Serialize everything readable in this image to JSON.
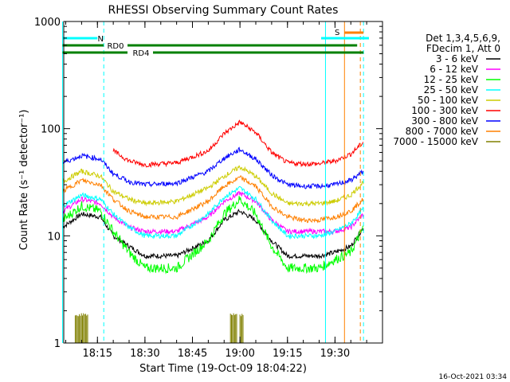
{
  "chart_data": {
    "type": "line",
    "title": "RHESSI Observing Summary Count Rates",
    "xlabel": "Start Time (19-Oct-09 18:04:22)",
    "ylabel": "Count Rate (s⁻¹ detector⁻¹)",
    "y_scale": "log",
    "ylim": [
      1,
      1000
    ],
    "xlim": [
      "18:04:22",
      "19:45:00"
    ],
    "x_ticks": [
      "18:15",
      "18:30",
      "18:45",
      "19:00",
      "19:15",
      "19:30"
    ],
    "y_ticks": [
      "1",
      "10",
      "100",
      "1000"
    ],
    "grid": false,
    "legend_placement": "right",
    "legend_header": [
      "Det 1,3,4,5,6,9,",
      "FDecim 1, Att 0"
    ],
    "series": [
      {
        "name": "3 - 6 keV",
        "color": "#000000",
        "t": [
          "18:04",
          "18:10",
          "18:16",
          "18:20",
          "18:25",
          "18:30",
          "18:40",
          "18:50",
          "18:55",
          "19:00",
          "19:05",
          "19:10",
          "19:15",
          "19:20",
          "19:25",
          "19:30",
          "19:35",
          "19:39"
        ],
        "values": [
          12,
          16,
          15,
          10,
          8,
          6.5,
          6.5,
          9,
          14,
          17,
          14,
          9,
          6.5,
          6.5,
          6.5,
          7,
          8,
          12
        ]
      },
      {
        "name": "6 - 12 keV",
        "color": "#ff00ff",
        "t": [
          "18:04",
          "18:10",
          "18:16",
          "18:20",
          "18:25",
          "18:30",
          "18:40",
          "18:50",
          "18:55",
          "19:00",
          "19:05",
          "19:10",
          "19:15",
          "19:20",
          "19:25",
          "19:30",
          "19:35",
          "19:39"
        ],
        "values": [
          17,
          22,
          20,
          15,
          12,
          11,
          11,
          15,
          21,
          25,
          21,
          14,
          11,
          11,
          11,
          11,
          12,
          16
        ]
      },
      {
        "name": "12 - 25 keV",
        "color": "#00ff00",
        "t": [
          "18:04",
          "18:10",
          "18:16",
          "18:20",
          "18:25",
          "18:30",
          "18:40",
          "18:50",
          "18:55",
          "19:00",
          "19:05",
          "19:10",
          "19:15",
          "19:20",
          "19:25",
          "19:30",
          "19:35",
          "19:39"
        ],
        "values": [
          14,
          19,
          17,
          11,
          7,
          5,
          5,
          9,
          16,
          22,
          16,
          8,
          5,
          5,
          5,
          6,
          7,
          12
        ]
      },
      {
        "name": "25 - 50 keV",
        "color": "#00ffff",
        "t": [
          "18:04",
          "18:10",
          "18:16",
          "18:20",
          "18:25",
          "18:30",
          "18:40",
          "18:50",
          "18:55",
          "19:00",
          "19:05",
          "19:10",
          "19:15",
          "19:20",
          "19:25",
          "19:30",
          "19:35",
          "19:39"
        ],
        "values": [
          19,
          24,
          22,
          16,
          12,
          10,
          10,
          16,
          23,
          28,
          22,
          14,
          10,
          10,
          10,
          11,
          13,
          18
        ]
      },
      {
        "name": "50 - 100 keV",
        "color": "#cccc00",
        "t": [
          "18:04",
          "18:10",
          "18:16",
          "18:20",
          "18:25",
          "18:30",
          "18:40",
          "18:50",
          "18:55",
          "19:00",
          "19:05",
          "19:10",
          "19:15",
          "19:20",
          "19:25",
          "19:30",
          "19:35",
          "19:39"
        ],
        "values": [
          32,
          40,
          36,
          26,
          22,
          20,
          21,
          28,
          36,
          44,
          36,
          25,
          20,
          20,
          20,
          21,
          24,
          32
        ]
      },
      {
        "name": "100 - 300 keV",
        "color": "#ff0000",
        "t": [
          "18:04",
          "18:10",
          "18:16",
          "18:19",
          "18:20",
          "18:25",
          "18:30",
          "18:40",
          "18:50",
          "18:55",
          "19:00",
          "19:05",
          "19:10",
          "19:15",
          "19:20",
          "19:25",
          "19:30",
          "19:35",
          "19:39"
        ],
        "values": [
          null,
          null,
          null,
          null,
          62,
          50,
          46,
          48,
          62,
          90,
          115,
          92,
          60,
          48,
          47,
          47,
          50,
          58,
          75
        ]
      },
      {
        "name": "300 - 800 keV",
        "color": "#0000ff",
        "t": [
          "18:04",
          "18:10",
          "18:16",
          "18:20",
          "18:25",
          "18:30",
          "18:40",
          "18:50",
          "18:55",
          "19:00",
          "19:05",
          "19:10",
          "19:15",
          "19:20",
          "19:25",
          "19:30",
          "19:35",
          "19:39"
        ],
        "values": [
          48,
          56,
          52,
          38,
          32,
          30,
          31,
          40,
          53,
          64,
          52,
          37,
          30,
          29,
          29,
          30,
          33,
          40
        ]
      },
      {
        "name": "800 - 7000 keV",
        "color": "#ff8000",
        "t": [
          "18:04",
          "18:10",
          "18:16",
          "18:20",
          "18:25",
          "18:30",
          "18:40",
          "18:50",
          "18:55",
          "19:00",
          "19:05",
          "19:10",
          "19:15",
          "19:20",
          "19:25",
          "19:30",
          "19:35",
          "19:39"
        ],
        "values": [
          26,
          33,
          30,
          22,
          17,
          15,
          15,
          21,
          29,
          35,
          29,
          19,
          15,
          14,
          14,
          15,
          17,
          22
        ]
      },
      {
        "name": "7000 - 15000 keV",
        "color": "#808000",
        "bursts": [
          [
            "18:08",
            "18:12"
          ],
          [
            "18:57",
            "18:59"
          ],
          [
            "19:00",
            "19:01"
          ]
        ],
        "values": [
          1.9,
          1.9,
          1.9
        ]
      }
    ],
    "annotations": [
      {
        "label": "N",
        "color": "#00ffff",
        "start": "18:04",
        "end": "18:17"
      },
      {
        "label": "RD0",
        "color": "#008000",
        "start": "18:04",
        "end": "19:37"
      },
      {
        "label": "RD4",
        "color": "#008000",
        "start": "18:04",
        "end": "19:39"
      },
      {
        "label": "S",
        "color": "#ff8000",
        "start": "19:33",
        "end": "19:39"
      }
    ],
    "vertical_markers": [
      {
        "time": "18:04",
        "color": "#00ffff",
        "style": "solid"
      },
      {
        "time": "18:17",
        "color": "#00ffff",
        "style": "dashed"
      },
      {
        "time": "19:27",
        "color": "#00ffff",
        "style": "solid"
      },
      {
        "time": "19:33",
        "color": "#ff8000",
        "style": "solid"
      },
      {
        "time": "19:38",
        "color": "#ff8000",
        "style": "dashed"
      },
      {
        "time": "19:39",
        "color": "#00ffff",
        "style": "dashed"
      }
    ]
  },
  "footer_date": "16-Oct-2021 03:34"
}
